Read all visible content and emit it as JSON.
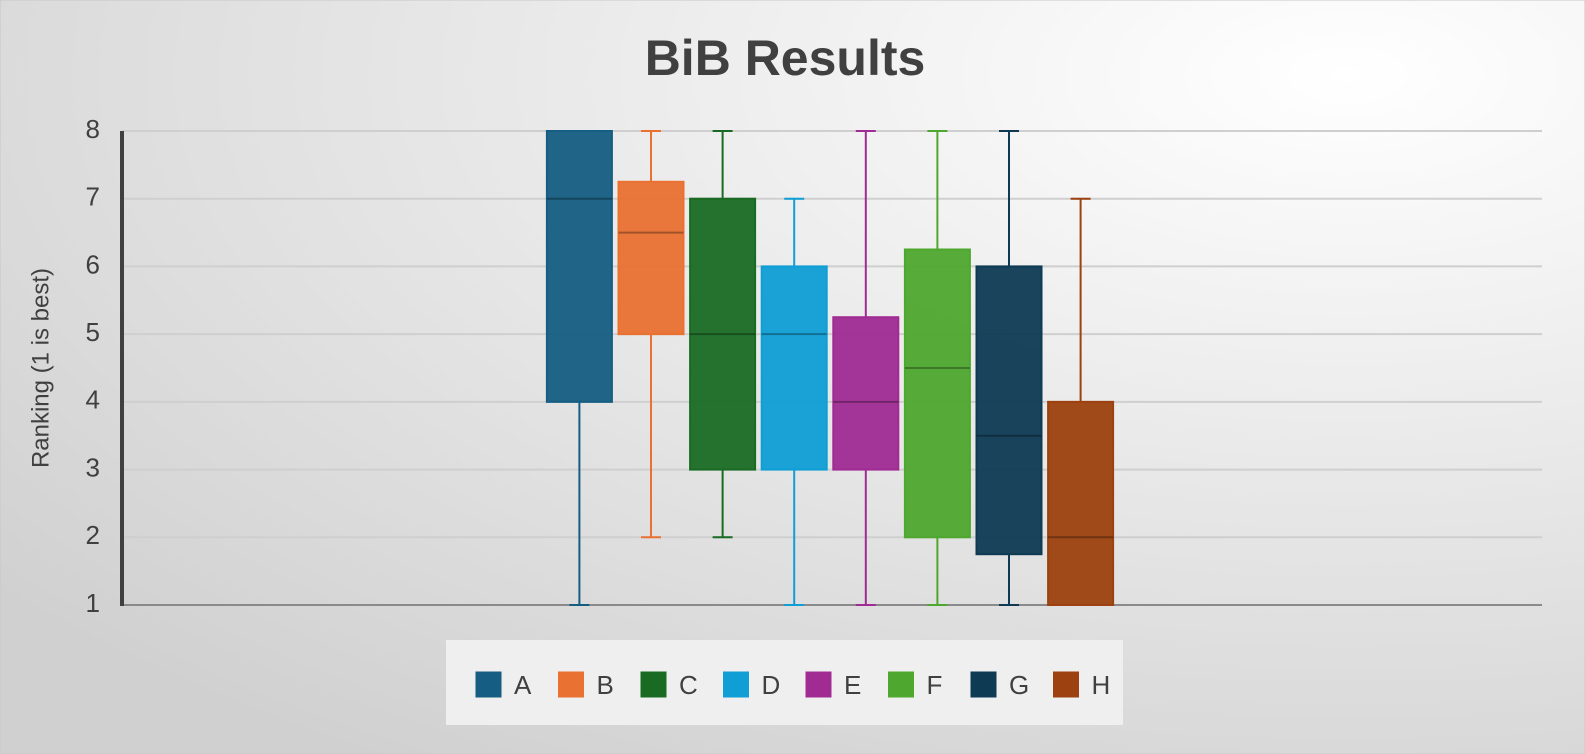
{
  "chart_data": {
    "type": "box",
    "title": "BiB Results",
    "y_label": "Ranking (1 is best)",
    "ylim": [
      1,
      8
    ],
    "yticks": [
      1,
      2,
      3,
      4,
      5,
      6,
      7,
      8
    ],
    "grid": true,
    "legend": "bottom",
    "series": [
      {
        "name": "A",
        "color": "#155d82",
        "min": 1,
        "q1": 4,
        "median": 7,
        "q3": 8,
        "max": 8
      },
      {
        "name": "B",
        "color": "#e97132",
        "min": 2,
        "q1": 5,
        "median": 6.5,
        "q3": 7.25,
        "max": 8
      },
      {
        "name": "C",
        "color": "#196b24",
        "min": 2,
        "q1": 3,
        "median": 5,
        "q3": 7,
        "max": 8
      },
      {
        "name": "D",
        "color": "#0f9ed5",
        "min": 1,
        "q1": 3,
        "median": 5,
        "q3": 6,
        "max": 7
      },
      {
        "name": "E",
        "color": "#a02b93",
        "min": 1,
        "q1": 3,
        "median": 4,
        "q3": 5.25,
        "max": 8
      },
      {
        "name": "F",
        "color": "#4ea72e",
        "min": 1,
        "q1": 2,
        "median": 4.5,
        "q3": 6.25,
        "max": 8
      },
      {
        "name": "G",
        "color": "#0e3a53",
        "min": 1,
        "q1": 1.75,
        "median": 3.5,
        "q3": 6,
        "max": 8
      },
      {
        "name": "H",
        "color": "#9c410f",
        "min": 1,
        "q1": 1,
        "median": 2,
        "q3": 4,
        "max": 7
      }
    ]
  }
}
